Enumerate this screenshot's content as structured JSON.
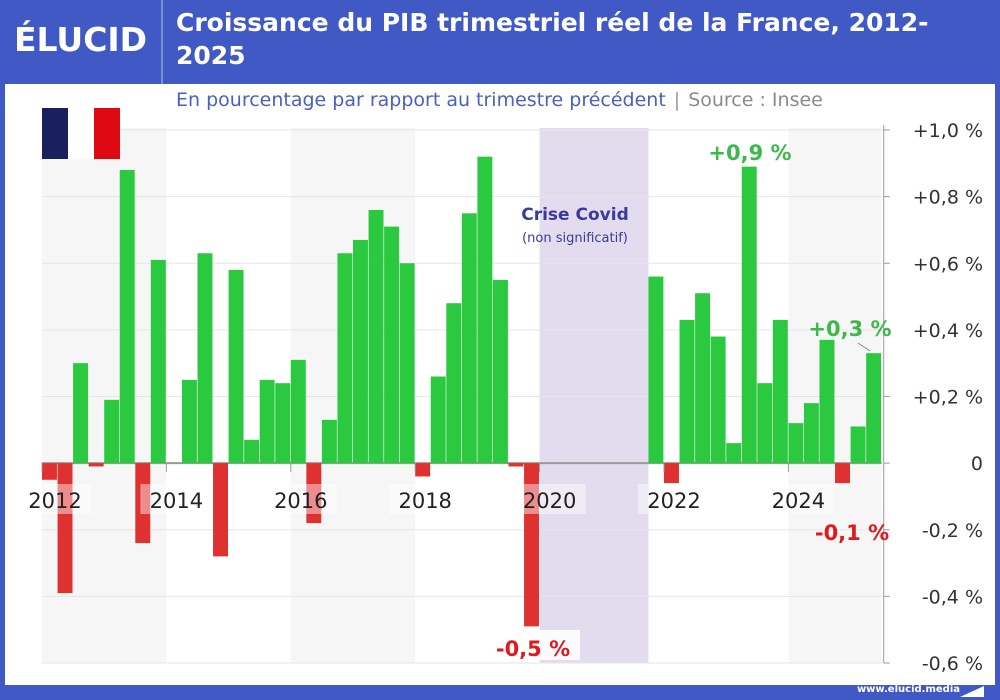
{
  "header": {
    "logo": "ÉLUCID",
    "title": "Croissance du PIB trimestriel réel de la France, 2012-2025",
    "subtitle": "En pourcentage par rapport au trimestre précédent",
    "separator": "|",
    "source": "Source : Insee"
  },
  "footer": {
    "url": "www.elucid.media"
  },
  "colors": {
    "frame": "#4159c4",
    "positive": "#2ac940",
    "negative": "#e03131",
    "covid_band": "#e3dcef",
    "flag": [
      "#1a1f5e",
      "#ffffff",
      "#dd0a14"
    ]
  },
  "flag_icon": "france-flag",
  "chart_data": {
    "type": "bar",
    "title": "Croissance du PIB trimestriel réel de la France, 2012-2025",
    "subtitle": "En pourcentage par rapport au trimestre précédent",
    "start": "2012-Q1",
    "frequency": "quarterly",
    "values": [
      -0.05,
      -0.39,
      0.3,
      -0.01,
      0.19,
      0.88,
      -0.24,
      0.61,
      0.0,
      0.25,
      0.63,
      -0.28,
      0.58,
      0.07,
      0.25,
      0.24,
      0.31,
      -0.18,
      0.13,
      0.63,
      0.67,
      0.76,
      0.71,
      0.6,
      -0.04,
      0.26,
      0.48,
      0.75,
      0.92,
      0.55,
      -0.01,
      -0.49,
      null,
      null,
      null,
      null,
      null,
      null,
      null,
      0.56,
      -0.06,
      0.43,
      0.51,
      0.38,
      0.06,
      0.89,
      0.24,
      0.43,
      0.12,
      0.18,
      0.37,
      -0.06,
      0.11,
      0.33
    ],
    "x_ticks": [
      "2012",
      "2014",
      "2016",
      "2018",
      "2020",
      "2022",
      "2024"
    ],
    "y_ticks": [
      "+1,0 %",
      "+0,8 %",
      "+0,6 %",
      "+0,4 %",
      "+0,2 %",
      "0",
      "-0,2 %",
      "-0,4 %",
      "-0,6 %"
    ],
    "ylim": [
      -0.6,
      1.0
    ],
    "grid": true,
    "annotations": {
      "covid_title": "Crise Covid",
      "covid_note": "(non significatif)",
      "max_label": "+0,9 %",
      "last_label": "+0,3 %",
      "min_label": "-0,5 %",
      "neg_label": "-0,1 %"
    }
  }
}
